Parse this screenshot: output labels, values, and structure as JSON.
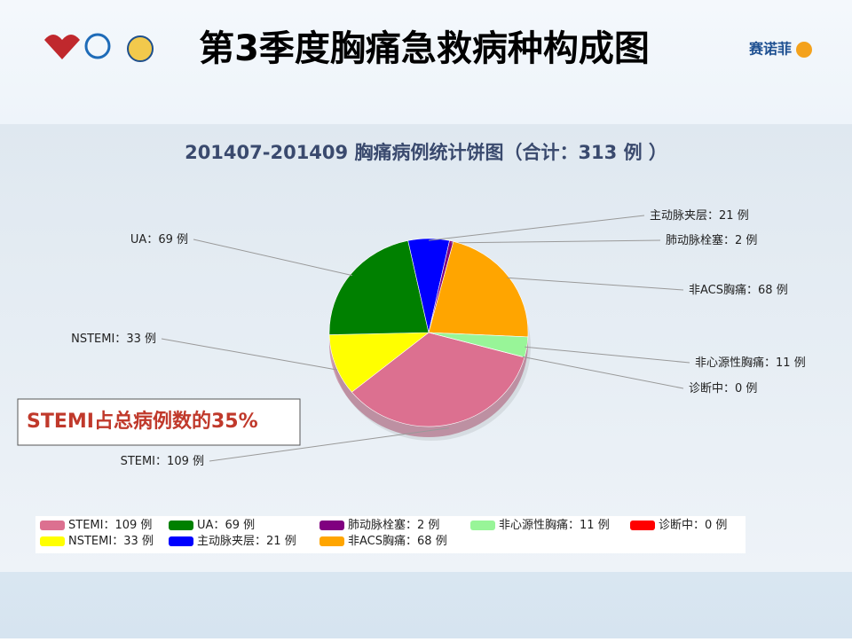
{
  "slide": {
    "title": "第3季度胸痛急救病种构成图",
    "logo_text": "赛诺菲"
  },
  "chart_data": {
    "type": "pie",
    "title": "201407-201409 胸痛病例统计饼图（合计：313 例 ）",
    "annotation": "STEMI占总病例数的35%",
    "label_separator": "：",
    "categories": [
      "STEMI",
      "NSTEMI",
      "UA",
      "主动脉夹层",
      "肺动脉栓塞",
      "非ACS胸痛",
      "非心源性胸痛",
      "诊断中"
    ],
    "values": [
      109,
      33,
      69,
      21,
      2,
      68,
      11,
      0
    ],
    "value_labels": [
      "109 例",
      "33 例",
      "69 例",
      "21 例",
      "2 例",
      "68 例",
      "11 例",
      "0 例"
    ],
    "colors": [
      "#dc7090",
      "#ffff00",
      "#008000",
      "#0000ff",
      "#800080",
      "#ffa500",
      "#98f598",
      "#ff0000"
    ]
  }
}
